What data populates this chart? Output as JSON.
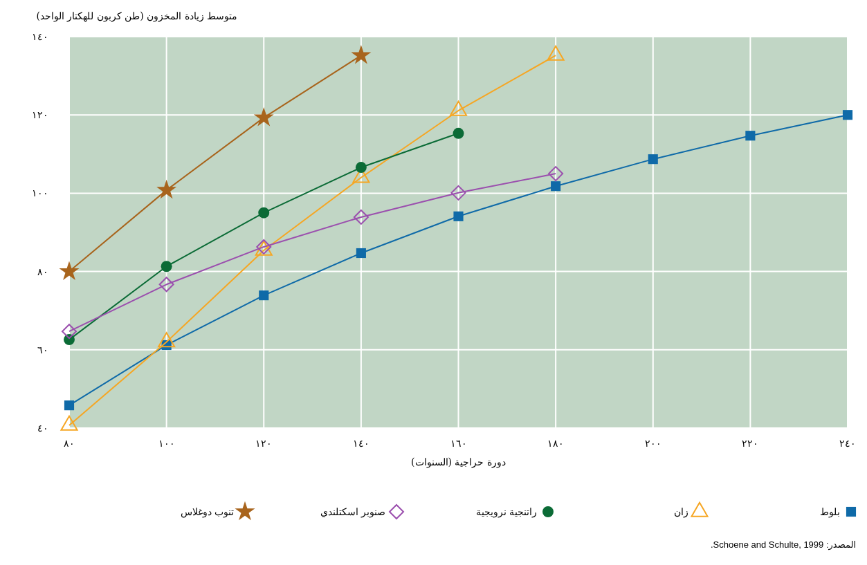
{
  "chart_data": {
    "type": "line",
    "xlabel": "دورة حراجية (السنوات)",
    "ylabel": "متوسط زيادة المخزون (طن كربون للهكتار الواحد)",
    "x": [
      80,
      100,
      120,
      140,
      160,
      180,
      200,
      220,
      240
    ],
    "xlim": [
      80,
      240
    ],
    "xticks": [
      {
        "value": 80,
        "label": "٨٠"
      },
      {
        "value": 100,
        "label": "١٠٠"
      },
      {
        "value": 120,
        "label": "١٢٠"
      },
      {
        "value": 140,
        "label": "١٤٠"
      },
      {
        "value": 160,
        "label": "١٦٠"
      },
      {
        "value": 180,
        "label": "١٨٠"
      },
      {
        "value": 200,
        "label": "٢٠٠"
      },
      {
        "value": 220,
        "label": "٢٢٠"
      },
      {
        "value": 240,
        "label": "٢٤٠"
      }
    ],
    "ylim": [
      40,
      140
    ],
    "yticks": [
      {
        "value": 40,
        "label": "٤٠"
      },
      {
        "value": 60,
        "label": "٦٠"
      },
      {
        "value": 80,
        "label": "٨٠"
      },
      {
        "value": 100,
        "label": "١٠٠"
      },
      {
        "value": 120,
        "label": "١٢٠"
      },
      {
        "value": 140,
        "label": "١٤٠"
      }
    ],
    "grid": true,
    "legend": "bottom",
    "series": [
      {
        "name": "بلوط",
        "color": "#0f6aa8",
        "marker": "square",
        "values": [
          45.8,
          61.2,
          73.9,
          84.7,
          94.1,
          101.8,
          108.7,
          114.7,
          120
        ]
      },
      {
        "name": "زان",
        "color": "#f6a623",
        "marker": "triangle",
        "values": [
          40.7,
          62,
          85.4,
          104,
          121.1,
          135.2,
          null,
          null,
          null
        ]
      },
      {
        "name": "راتنجية نرويجية",
        "color": "#0b6b36",
        "marker": "circle",
        "values": [
          62.6,
          81.3,
          95,
          106.6,
          115.3,
          null,
          null,
          null,
          null
        ]
      },
      {
        "name": "صنوبر اسكتلندي",
        "color": "#9b4fae",
        "marker": "diamond",
        "values": [
          64.7,
          76.7,
          86.3,
          93.9,
          100.1,
          105,
          null,
          null,
          null
        ]
      },
      {
        "name": "تنوب دوغلاس",
        "color": "#a8641c",
        "marker": "star",
        "values": [
          80,
          100.8,
          119.3,
          135.2,
          null,
          null,
          null,
          null,
          null
        ]
      }
    ],
    "annotations": [
      "المصدر: Schoene and Schulte, 1999."
    ]
  }
}
